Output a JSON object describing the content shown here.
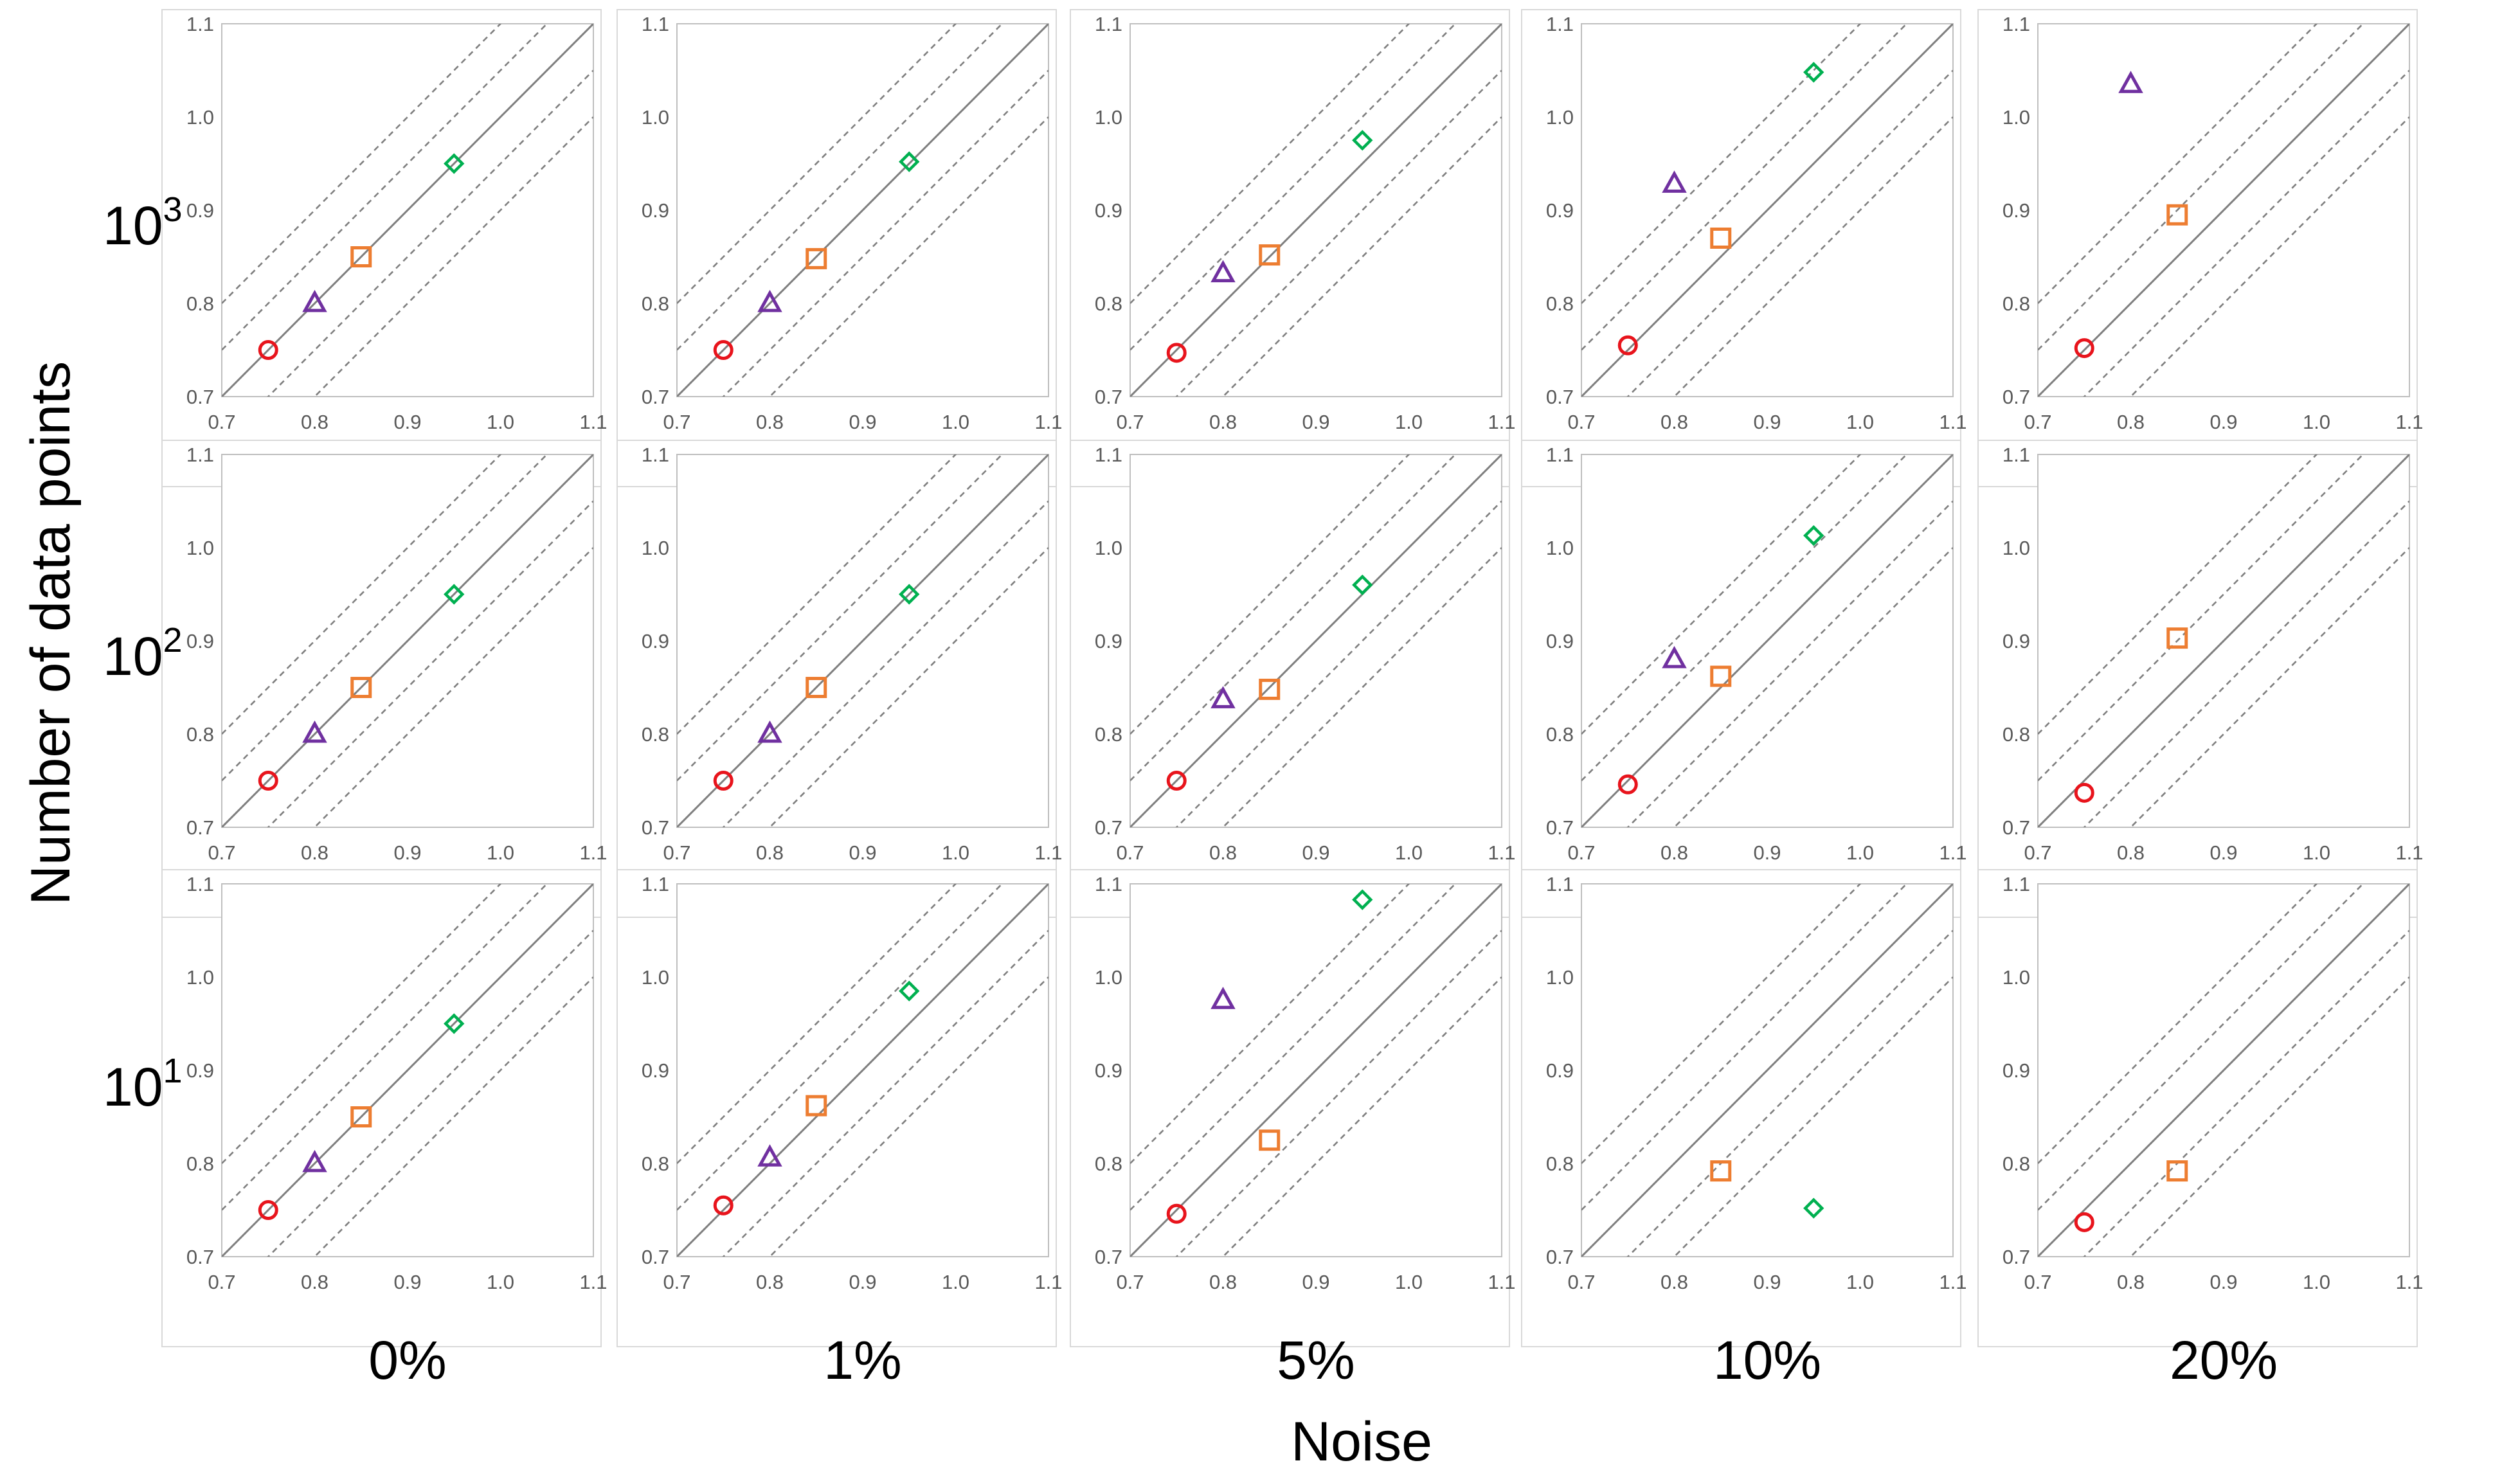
{
  "chart_data": {
    "type": "scatter",
    "title": "",
    "xlabel": "Noise",
    "ylabel": "Number of data points",
    "xlim": [
      0.7,
      1.1
    ],
    "ylim": [
      0.7,
      1.1
    ],
    "ticks": [
      "0.7",
      "0.8",
      "0.9",
      "1.0",
      "1.1"
    ],
    "tick_values": [
      0.7,
      0.8,
      0.9,
      1.0,
      1.1
    ],
    "reference_lines": {
      "solid": "y = x",
      "dashed_offsets": [
        -0.1,
        -0.05,
        0.05,
        0.1
      ]
    },
    "columns": [
      "0%",
      "1%",
      "5%",
      "10%",
      "20%"
    ],
    "rows": [
      {
        "base": "10",
        "exponent": "3"
      },
      {
        "base": "10",
        "exponent": "2"
      },
      {
        "base": "10",
        "exponent": "1"
      }
    ],
    "series": [
      {
        "name": "circle",
        "marker": "circle",
        "color": "#e8141c",
        "x": 0.75
      },
      {
        "name": "triangle",
        "marker": "triangle",
        "color": "#7030a0",
        "x": 0.8
      },
      {
        "name": "square",
        "marker": "square",
        "color": "#ed7d31",
        "x": 0.85
      },
      {
        "name": "diamond",
        "marker": "diamond",
        "color": "#00b050",
        "x": 0.95
      }
    ],
    "panels": [
      {
        "row": 0,
        "col": 0,
        "values": {
          "circle": 0.75,
          "triangle": 0.8,
          "square": 0.85,
          "diamond": 0.95
        }
      },
      {
        "row": 0,
        "col": 1,
        "values": {
          "circle": 0.75,
          "triangle": 0.8,
          "square": 0.848,
          "diamond": 0.952
        }
      },
      {
        "row": 0,
        "col": 2,
        "values": {
          "circle": 0.747,
          "triangle": 0.832,
          "square": 0.852,
          "diamond": 0.975
        }
      },
      {
        "row": 0,
        "col": 3,
        "values": {
          "circle": 0.755,
          "triangle": 0.928,
          "square": 0.87,
          "diamond": 1.048
        }
      },
      {
        "row": 0,
        "col": 4,
        "values": {
          "circle": 0.752,
          "triangle": 1.035,
          "square": 0.895,
          "diamond": null
        }
      },
      {
        "row": 1,
        "col": 0,
        "values": {
          "circle": 0.75,
          "triangle": 0.8,
          "square": 0.85,
          "diamond": 0.95
        }
      },
      {
        "row": 1,
        "col": 1,
        "values": {
          "circle": 0.75,
          "triangle": 0.8,
          "square": 0.85,
          "diamond": 0.95
        }
      },
      {
        "row": 1,
        "col": 2,
        "values": {
          "circle": 0.75,
          "triangle": 0.837,
          "square": 0.848,
          "diamond": 0.96
        }
      },
      {
        "row": 1,
        "col": 3,
        "values": {
          "circle": 0.746,
          "triangle": 0.88,
          "square": 0.862,
          "diamond": 1.013
        }
      },
      {
        "row": 1,
        "col": 4,
        "values": {
          "circle": 0.737,
          "triangle": null,
          "square": 0.903,
          "diamond": null
        }
      },
      {
        "row": 2,
        "col": 0,
        "values": {
          "circle": 0.75,
          "triangle": 0.8,
          "square": 0.85,
          "diamond": 0.95
        }
      },
      {
        "row": 2,
        "col": 1,
        "values": {
          "circle": 0.755,
          "triangle": 0.806,
          "square": 0.862,
          "diamond": 0.985
        }
      },
      {
        "row": 2,
        "col": 2,
        "values": {
          "circle": 0.746,
          "triangle": 0.975,
          "square": 0.825,
          "diamond": 1.083
        }
      },
      {
        "row": 2,
        "col": 3,
        "values": {
          "circle": null,
          "triangle": null,
          "square": 0.792,
          "diamond": 0.752
        }
      },
      {
        "row": 2,
        "col": 4,
        "values": {
          "circle": 0.737,
          "triangle": null,
          "square": 0.792,
          "diamond": null
        }
      }
    ]
  }
}
